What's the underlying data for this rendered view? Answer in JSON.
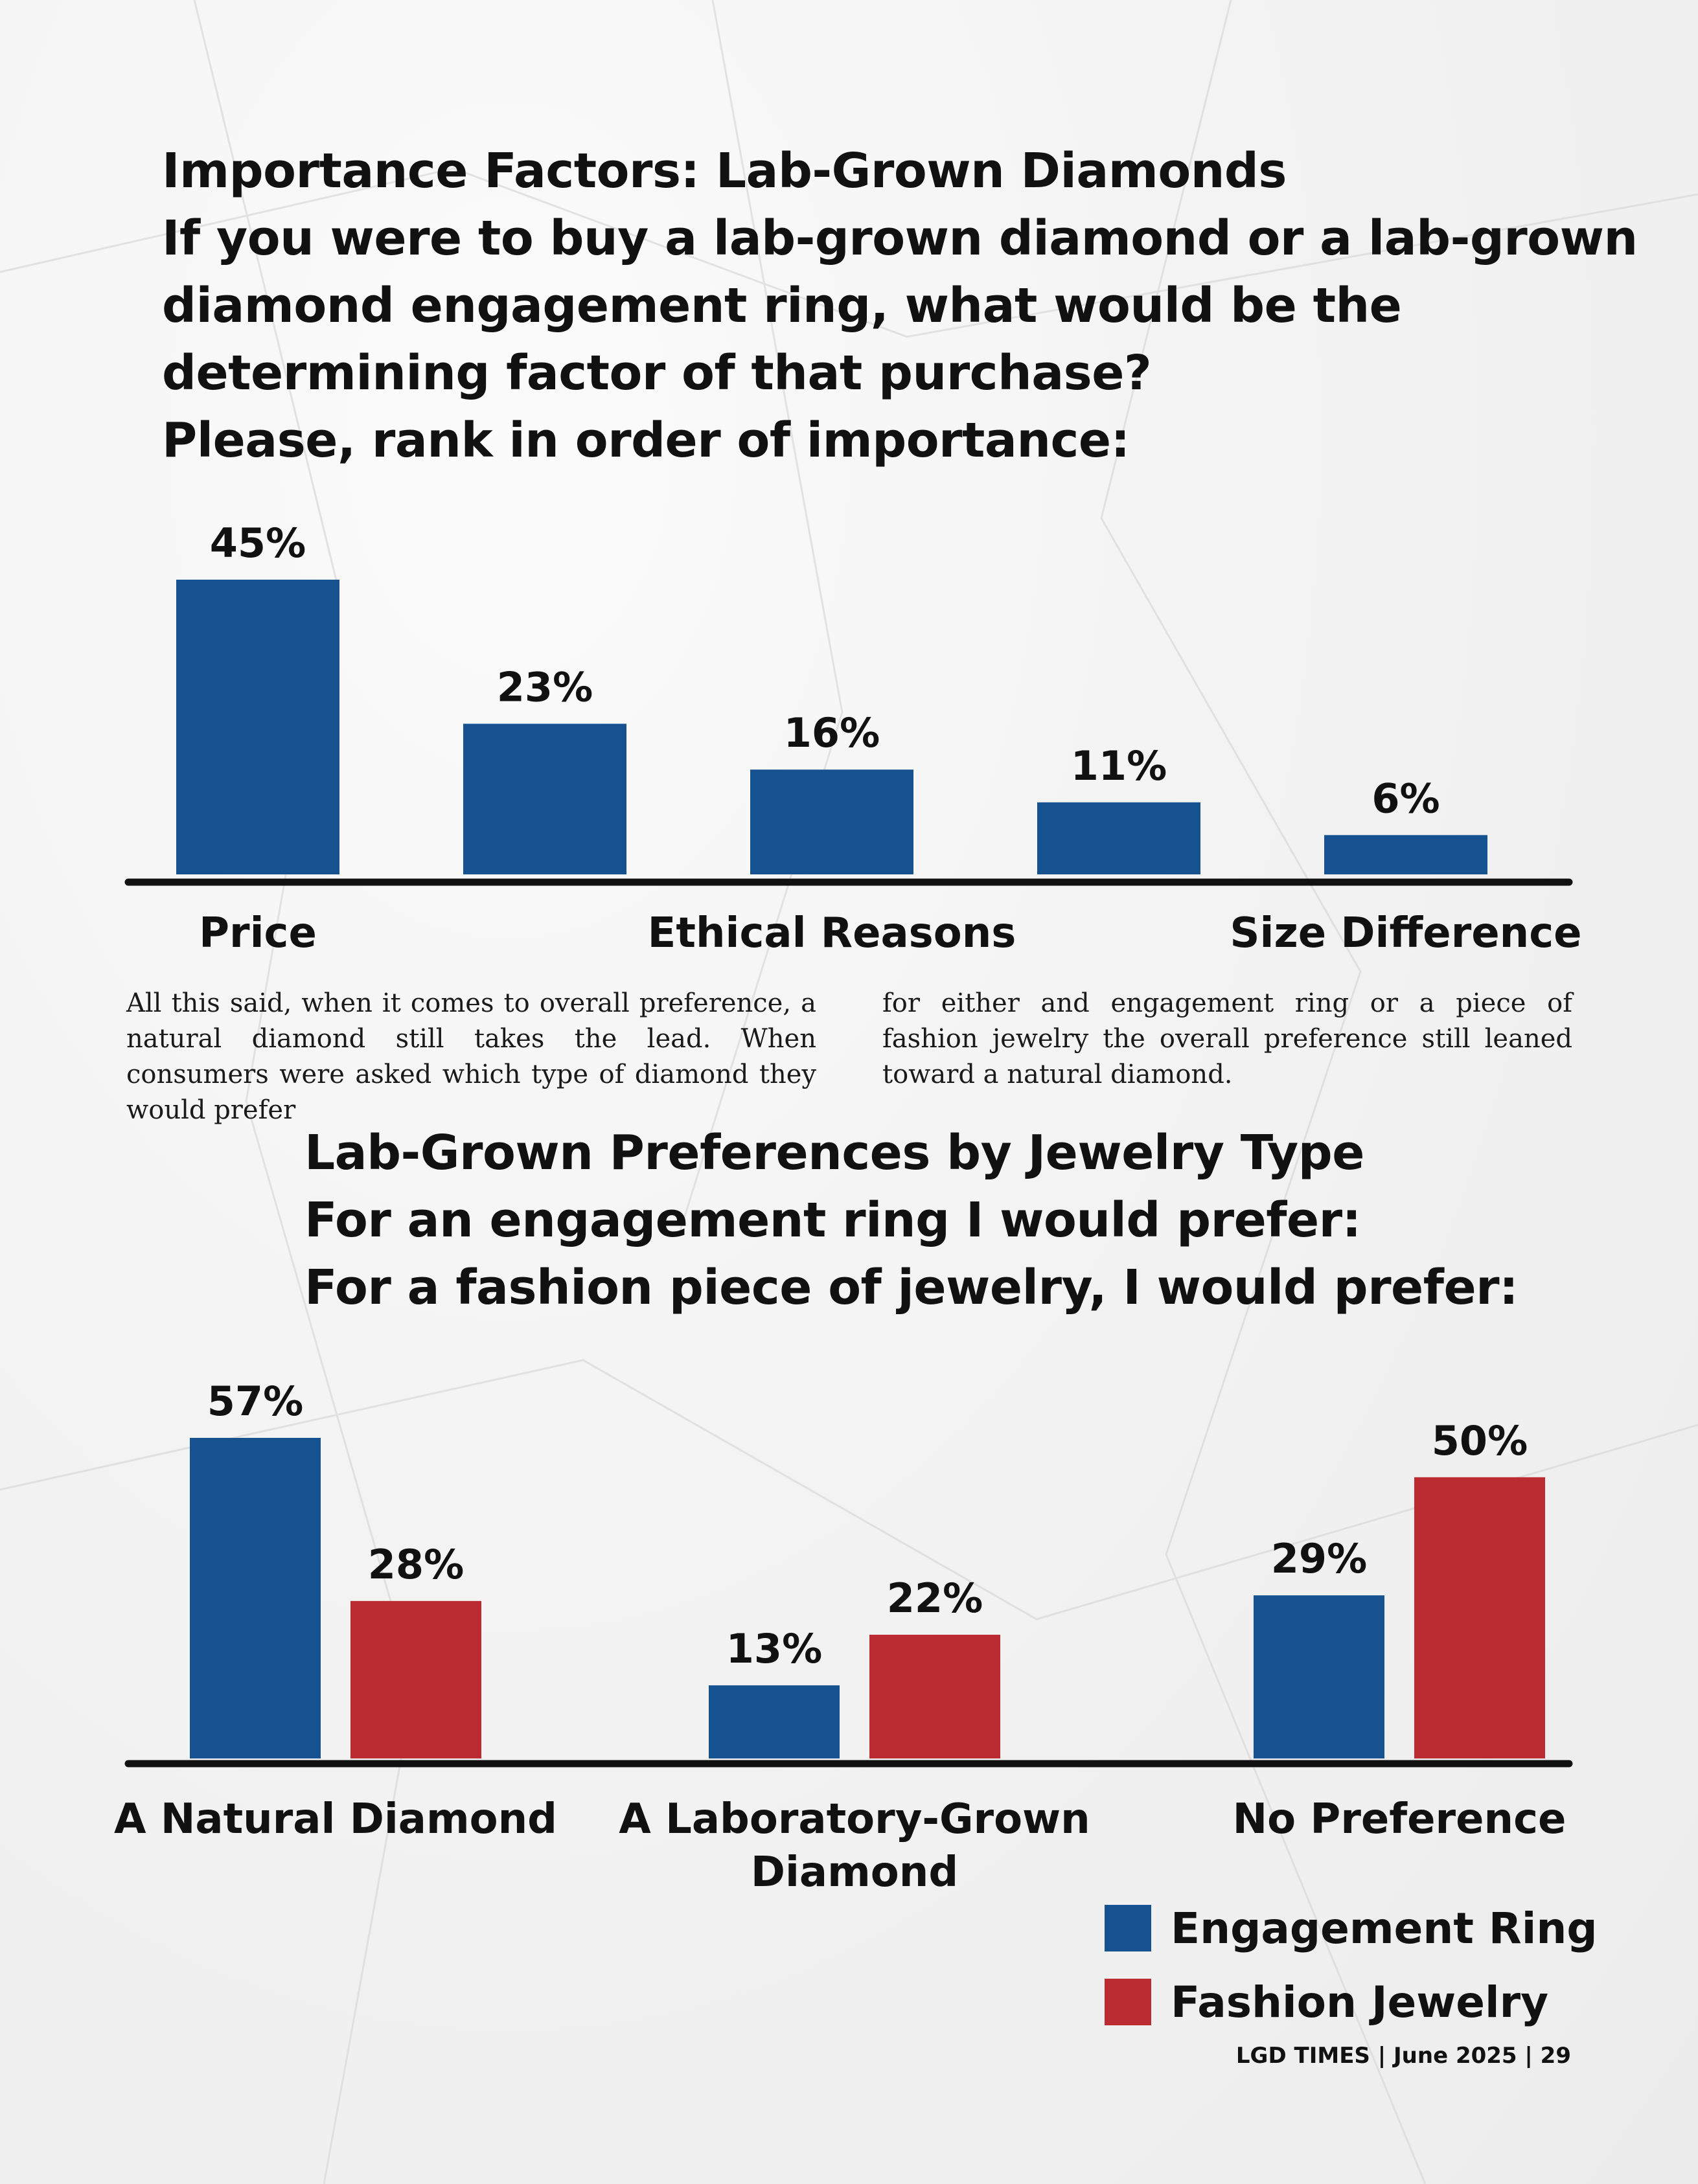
{
  "colors": {
    "engagement": "#15528f",
    "fashion": "#ba2b32",
    "axis": "#111111"
  },
  "chart1": {
    "title_lines": [
      "Importance Factors: Lab-Grown Diamonds",
      "If you were to buy a lab-grown diamond or a lab-grown",
      "diamond engagement ring, what would be the",
      "determining factor of that purchase?",
      "Please, rank in order of importance:"
    ]
  },
  "chart2": {
    "title_lines": [
      "Lab-Grown Preferences by Jewelry Type",
      "For an engagement ring I would prefer:",
      "For a fashion piece of jewelry, I would prefer:"
    ]
  },
  "body_text": {
    "col1": "All this said, when it comes to overall preference, a natural diamond still takes the lead. When consumers were asked which type of diamond they would prefer",
    "col2": "for either and engagement ring or a piece of fashion jewelry the overall preference still leaned toward a natural diamond."
  },
  "legend": [
    {
      "label": "Engagement Ring",
      "color": "#15528f"
    },
    {
      "label": "Fashion Jewelry",
      "color": "#ba2b32"
    }
  ],
  "footer": "LGD TIMES | June 2025 | 29",
  "chart_data": [
    {
      "type": "bar",
      "title": "Importance Factors: Lab-Grown Diamonds",
      "categories": [
        "Price",
        "",
        "Ethical Reasons",
        "",
        "Size Difference"
      ],
      "values": [
        45,
        23,
        16,
        11,
        6
      ],
      "value_labels": [
        "45%",
        "23%",
        "16%",
        "11%",
        "6%"
      ],
      "xlabel": "",
      "ylabel": "",
      "ylim": [
        0,
        45
      ],
      "grid": false
    },
    {
      "type": "bar",
      "title": "Lab-Grown Preferences by Jewelry Type",
      "categories": [
        [
          "A Natural Diamond"
        ],
        [
          "A Laboratory-Grown",
          "Diamond"
        ],
        [
          "No Preference"
        ]
      ],
      "series": [
        {
          "name": "Engagement Ring",
          "values": [
            57,
            13,
            29
          ],
          "value_labels": [
            "57%",
            "13%",
            "29%"
          ]
        },
        {
          "name": "Fashion Jewelry",
          "values": [
            28,
            22,
            50
          ],
          "value_labels": [
            "28%",
            "22%",
            "50%"
          ]
        }
      ],
      "xlabel": "",
      "ylabel": "",
      "ylim": [
        0,
        57
      ],
      "grid": false,
      "legend": "bottom-right"
    }
  ]
}
